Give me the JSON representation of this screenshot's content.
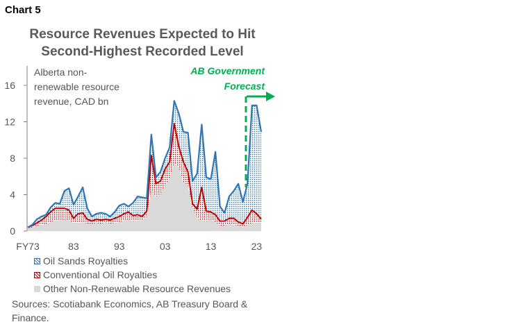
{
  "header": {
    "chart_label": "Chart 5",
    "title_line1": "Resource Revenues Expected to Hit",
    "title_line2": "Second-Highest Recorded Level"
  },
  "annotations": {
    "unit_line1": "Alberta non-",
    "unit_line2": "renewable resource",
    "unit_line3": "revenue, CAD bn",
    "forecast_line1": "AB Government",
    "forecast_line2": "Forecast"
  },
  "legend": {
    "oil_sands": "Oil Sands Royalties",
    "conventional": "Conventional Oil Royalties",
    "other": "Other Non-Renewable Resource Revenues"
  },
  "sources": "Sources: Scotiabank Economics, AB Treasury Board & Finance.",
  "colors": {
    "oil_sands": "#2E75B6",
    "conventional": "#C00000",
    "other": "#D9D9D9",
    "forecast": "#00B050"
  },
  "chart_data": {
    "type": "area",
    "stacked": true,
    "x": [
      1973,
      1974,
      1975,
      1976,
      1977,
      1978,
      1979,
      1980,
      1981,
      1982,
      1983,
      1984,
      1985,
      1986,
      1987,
      1988,
      1989,
      1990,
      1991,
      1992,
      1993,
      1994,
      1995,
      1996,
      1997,
      1998,
      1999,
      2000,
      2001,
      2002,
      2003,
      2004,
      2005,
      2006,
      2007,
      2008,
      2009,
      2010,
      2011,
      2012,
      2013,
      2014,
      2015,
      2016,
      2017,
      2018,
      2019,
      2020,
      2021,
      2022,
      2023,
      2024
    ],
    "xticks": [
      "FY73",
      "83",
      "93",
      "03",
      "13",
      "23"
    ],
    "yticks": [
      0,
      4,
      8,
      12,
      16
    ],
    "ylim": [
      0,
      17
    ],
    "series": [
      {
        "name": "Other Non-Renewable Resource Revenues",
        "values": [
          0.3,
          0.4,
          0.6,
          0.7,
          0.8,
          1.0,
          1.2,
          1.2,
          1.3,
          1.2,
          0.9,
          0.9,
          1.0,
          0.8,
          0.8,
          0.9,
          0.8,
          1.0,
          0.8,
          0.9,
          1.0,
          1.2,
          1.3,
          1.1,
          1.2,
          1.2,
          1.6,
          4.5,
          3.8,
          4.0,
          5.0,
          5.8,
          7.5,
          7.0,
          5.4,
          5.0,
          2.4,
          1.4,
          1.2,
          1.1,
          1.3,
          1.0,
          0.6,
          0.6,
          0.8,
          0.7,
          0.6,
          0.5,
          0.7,
          0.9,
          0.9,
          0.9
        ]
      },
      {
        "name": "Conventional Oil Royalties",
        "values": [
          0.1,
          0.2,
          0.3,
          0.5,
          0.8,
          1.1,
          1.3,
          1.3,
          1.2,
          1.1,
          0.5,
          1.0,
          1.0,
          0.5,
          0.3,
          0.4,
          0.4,
          0.3,
          0.4,
          0.5,
          0.6,
          0.7,
          0.8,
          0.6,
          0.6,
          0.4,
          0.6,
          3.8,
          1.4,
          1.5,
          1.8,
          1.8,
          4.3,
          2.3,
          2.2,
          1.5,
          0.6,
          1.0,
          3.6,
          1.1,
          0.8,
          0.8,
          0.5,
          0.5,
          0.6,
          0.7,
          0.4,
          0.3,
          0.8,
          1.4,
          1.0,
          0.4
        ]
      },
      {
        "name": "Oil Sands Royalties",
        "values": [
          0.0,
          0.1,
          0.4,
          0.4,
          0.2,
          0.5,
          0.6,
          0.5,
          1.9,
          2.4,
          1.5,
          1.9,
          2.8,
          1.2,
          0.5,
          0.6,
          0.8,
          0.6,
          0.4,
          0.7,
          1.2,
          1.1,
          0.6,
          1.4,
          2.0,
          2.1,
          1.4,
          2.3,
          0.7,
          1.0,
          1.2,
          1.6,
          2.5,
          3.6,
          3.3,
          4.3,
          2.5,
          3.9,
          6.9,
          3.7,
          3.6,
          6.9,
          1.6,
          0.9,
          2.4,
          3.0,
          4.2,
          2.4,
          3.7,
          11.5,
          11.9,
          9.6
        ]
      }
    ],
    "forecast_start": 2021
  }
}
